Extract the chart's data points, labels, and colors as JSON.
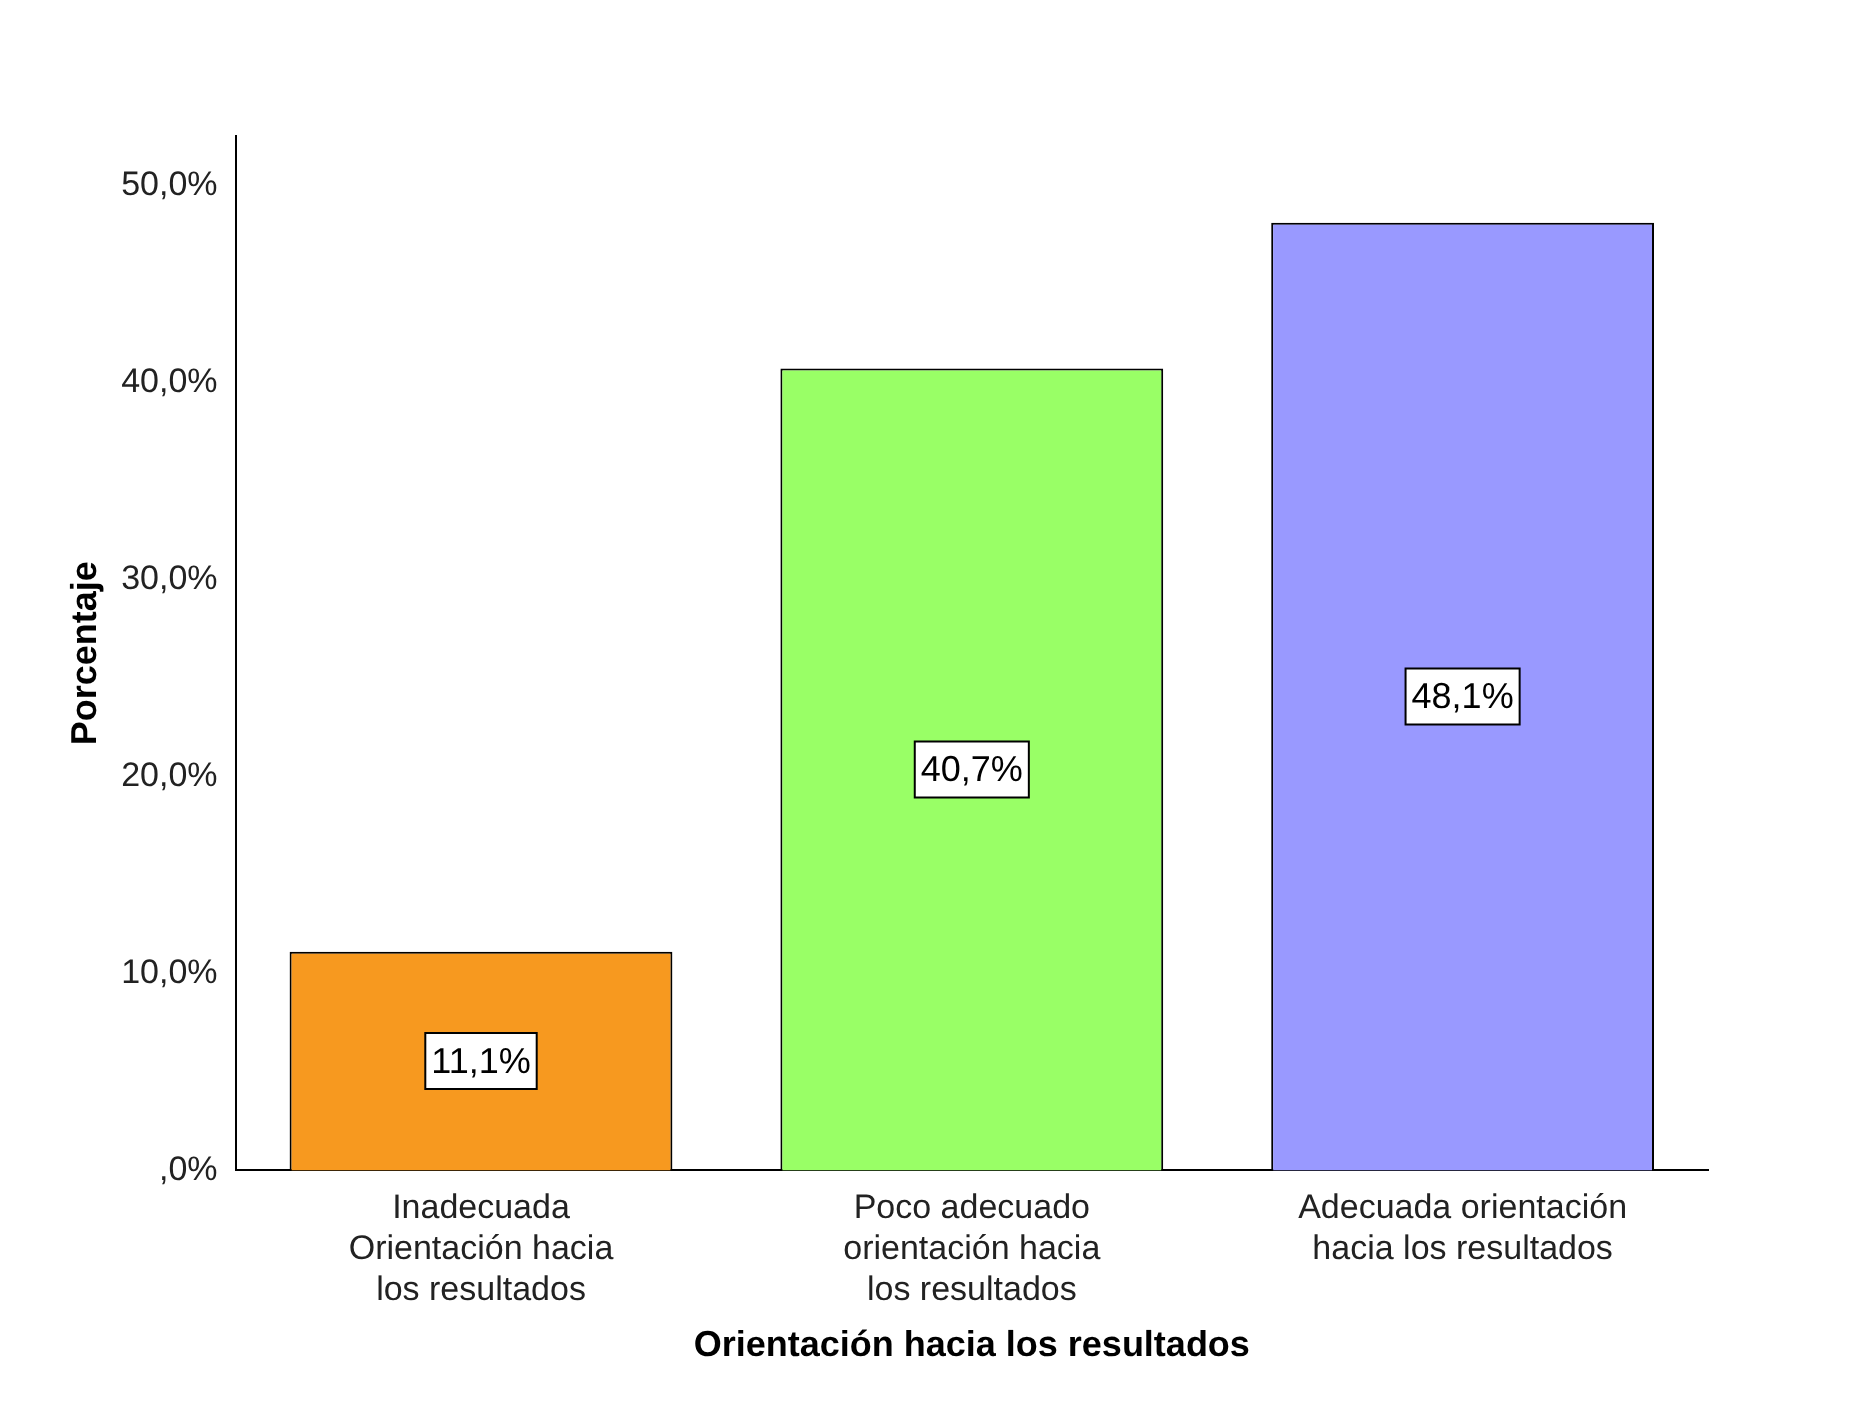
{
  "chart_data": {
    "type": "bar",
    "xlabel": "Orientación hacia los resultados",
    "ylabel": "Porcentaje",
    "categories": [
      "Inadecuada Orientación hacia los resultados",
      "Poco adecuado orientación hacia los resultados",
      "Adecuada orientación hacia los resultados"
    ],
    "values": [
      11.1,
      40.7,
      48.1
    ],
    "colors": [
      "#f7991f",
      "#99ff66",
      "#9999ff"
    ],
    "value_labels": [
      "11,1%",
      "40,7%",
      "48,1%"
    ],
    "ylim": [
      0,
      52.5
    ],
    "yticks": [
      {
        "value": 0,
        "label": ",0%"
      },
      {
        "value": 10,
        "label": "10,0%"
      },
      {
        "value": 20,
        "label": "20,0%"
      },
      {
        "value": 30,
        "label": "30,0%"
      },
      {
        "value": 40,
        "label": "40,0%"
      },
      {
        "value": 50,
        "label": "50,0%"
      }
    ],
    "grid": false,
    "legend": false
  }
}
